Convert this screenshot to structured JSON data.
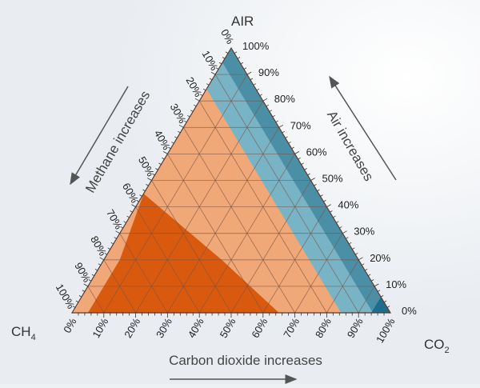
{
  "diagram": {
    "vertices": {
      "air": "AIR",
      "ch4": "CH",
      "ch4_sub": "4",
      "co2": "CO",
      "co2_sub": "2"
    },
    "axis_titles": {
      "methane": "Methane increases",
      "air": "Air increases",
      "co2": "Carbon dioxide increases"
    },
    "ticks": [
      "0%",
      "10%",
      "20%",
      "30%",
      "40%",
      "50%",
      "60%",
      "70%",
      "80%",
      "90%",
      "100%"
    ],
    "colors": {
      "fill_main": "#f0a878",
      "band_light": "#79b4c6",
      "band_dark": "#4b8fa6",
      "band_corner": "#1d6e8e",
      "explosive": "#d95a0f",
      "grid": "#7a5140",
      "arrow": "#555555",
      "background": "#eef1f4"
    }
  }
}
